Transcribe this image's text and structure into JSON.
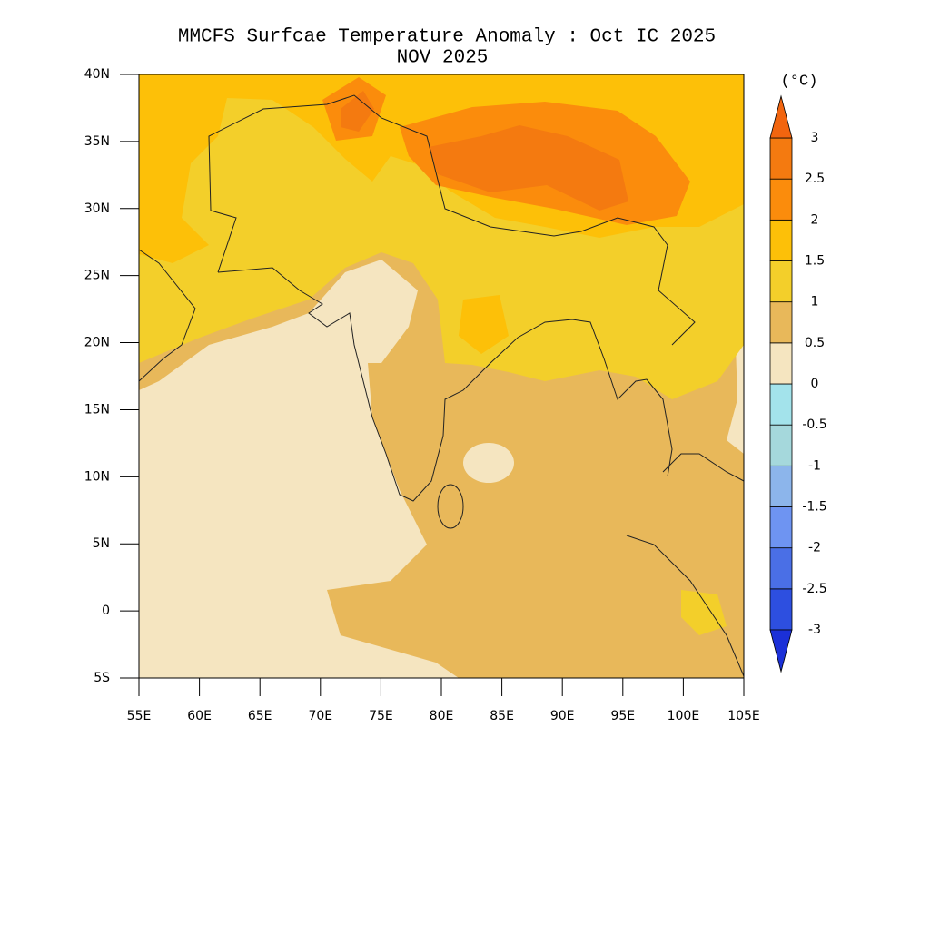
{
  "title": "MMCFS Surfcae Temperature Anomaly : Oct IC 2025",
  "subtitle": "NOV 2025",
  "map": {
    "xlim": [
      55,
      105
    ],
    "ylim": [
      -5,
      40
    ],
    "xticks": [
      {
        "value": 55,
        "label": "55E"
      },
      {
        "value": 60,
        "label": "60E"
      },
      {
        "value": 65,
        "label": "65E"
      },
      {
        "value": 70,
        "label": "70E"
      },
      {
        "value": 75,
        "label": "75E"
      },
      {
        "value": 80,
        "label": "80E"
      },
      {
        "value": 85,
        "label": "85E"
      },
      {
        "value": 90,
        "label": "90E"
      },
      {
        "value": 95,
        "label": "95E"
      },
      {
        "value": 100,
        "label": "100E"
      },
      {
        "value": 105,
        "label": "105E"
      }
    ],
    "yticks": [
      {
        "value": 40,
        "label": "40N"
      },
      {
        "value": 35,
        "label": "35N"
      },
      {
        "value": 30,
        "label": "30N"
      },
      {
        "value": 25,
        "label": "25N"
      },
      {
        "value": 20,
        "label": "20N"
      },
      {
        "value": 15,
        "label": "15N"
      },
      {
        "value": 10,
        "label": "10N"
      },
      {
        "value": 5,
        "label": "5N"
      },
      0,
      {
        "value": -5,
        "label": "5S"
      }
    ]
  },
  "colorbar": {
    "unit": "(°C)",
    "levels": [
      -3,
      -2.5,
      -2,
      -1.5,
      -1,
      -0.5,
      0,
      0.5,
      1,
      1.5,
      2,
      2.5,
      3
    ],
    "colors": [
      "#1b30d8",
      "#2d4fe0",
      "#4a6fe6",
      "#6e94f2",
      "#8cb5eb",
      "#a5d8dc",
      "#a3e3eb",
      "#f5e5c0",
      "#e8b85a",
      "#f3cf2a",
      "#fdc008",
      "#fb8c0c",
      "#f47a10",
      "#f2650f"
    ]
  }
}
